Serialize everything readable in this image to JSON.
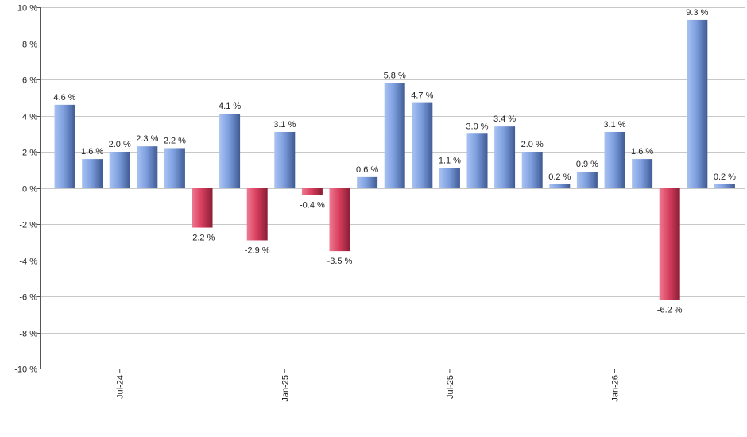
{
  "chart_data": {
    "type": "bar",
    "title": "",
    "xlabel": "",
    "ylabel": "",
    "unit": "%",
    "ylim": [
      -10,
      10
    ],
    "y_ticks": [
      10,
      8,
      6,
      4,
      2,
      0,
      -2,
      -4,
      -6,
      -8,
      -10
    ],
    "y_tick_labels": [
      "10 %",
      "8 %",
      "6 %",
      "4 %",
      "2 %",
      "0 %",
      "-2 %",
      "-4 %",
      "-6 %",
      "-8 %",
      "-10 %"
    ],
    "x_tick_labels": [
      {
        "label": "Jul-24",
        "index": 2
      },
      {
        "label": "Jan-25",
        "index": 8
      },
      {
        "label": "Jul-25",
        "index": 14
      },
      {
        "label": "Jan-26",
        "index": 20
      }
    ],
    "values": [
      4.6,
      1.6,
      2.0,
      2.3,
      2.2,
      -2.2,
      4.1,
      -2.9,
      3.1,
      -0.4,
      -3.5,
      0.6,
      5.8,
      4.7,
      1.1,
      3.0,
      3.4,
      2.0,
      0.2,
      0.9,
      3.1,
      1.6,
      -6.2,
      9.3,
      0.2
    ],
    "value_labels": [
      "4.6 %",
      "1.6 %",
      "2.0 %",
      "2.3 %",
      "2.2 %",
      "-2.2 %",
      "4.1 %",
      "-2.9 %",
      "3.1 %",
      "-0.4 %",
      "-3.5 %",
      "0.6 %",
      "5.8 %",
      "4.7 %",
      "1.1 %",
      "3.0 %",
      "3.4 %",
      "2.0 %",
      "0.2 %",
      "0.9 %",
      "3.1 %",
      "1.6 %",
      "-6.2 %",
      "9.3 %",
      "0.2 %"
    ],
    "grid": true,
    "legend": "none",
    "colors": {
      "positive_light": "#a9c3f2",
      "positive_mid": "#7e9fdf",
      "positive_dark": "#3f5a93",
      "negative_light": "#ee7b92",
      "negative_mid": "#d9405f",
      "negative_dark": "#8a1d34",
      "grid": "#c8c8c8",
      "axis": "#555555"
    }
  }
}
